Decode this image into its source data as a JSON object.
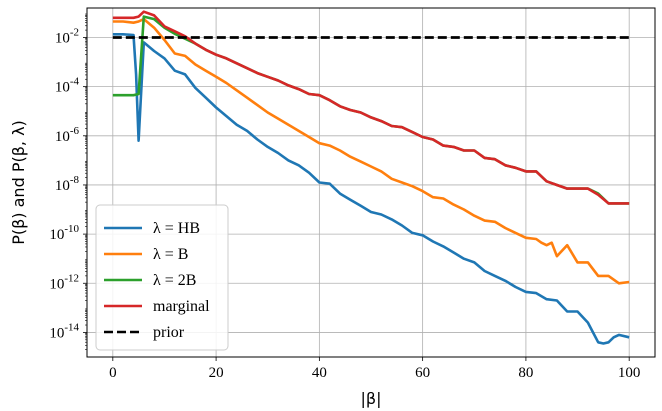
{
  "chart_data": {
    "type": "line",
    "xlabel": "|β|",
    "ylabel": "P(β) and P(β, λ)",
    "xlim": [
      -5,
      105
    ],
    "ylim_log10": [
      -15,
      -0.8
    ],
    "yscale": "log",
    "grid": true,
    "legend_position": "lower-left",
    "x_ticks": [
      0,
      20,
      40,
      60,
      80,
      100
    ],
    "x_tick_labels": [
      "0",
      "20",
      "40",
      "60",
      "80",
      "100"
    ],
    "y_ticks_exp": [
      -14,
      -12,
      -10,
      -8,
      -6,
      -4,
      -2
    ],
    "y_tick_labels": [
      "10^-14",
      "10^-12",
      "10^-10",
      "10^-8",
      "10^-6",
      "10^-4",
      "10^-2"
    ],
    "series": [
      {
        "name": "λ = HB",
        "color": "#1f77b4",
        "style": "solid",
        "x": [
          0,
          2,
          4,
          4.5,
          5,
          6,
          8,
          10,
          12,
          14,
          16,
          18,
          20,
          22,
          24,
          26,
          28,
          30,
          32,
          34,
          36,
          38,
          40,
          42,
          44,
          46,
          48,
          50,
          52,
          54,
          56,
          58,
          60,
          62,
          64,
          66,
          68,
          70,
          72,
          74,
          76,
          78,
          80,
          82,
          84,
          86,
          88,
          90,
          92,
          93,
          94,
          95,
          96,
          97,
          98,
          100
        ],
        "log10_y": [
          -1.87,
          -1.87,
          -1.9,
          -3.5,
          -6.2,
          -2.2,
          -2.55,
          -2.85,
          -3.35,
          -3.5,
          -4.05,
          -4.45,
          -4.85,
          -5.2,
          -5.55,
          -5.8,
          -6.15,
          -6.45,
          -6.7,
          -7.0,
          -7.2,
          -7.5,
          -7.9,
          -7.95,
          -8.35,
          -8.6,
          -8.85,
          -9.1,
          -9.2,
          -9.4,
          -9.65,
          -9.95,
          -10.05,
          -10.3,
          -10.5,
          -10.75,
          -11.0,
          -11.15,
          -11.5,
          -11.7,
          -11.9,
          -12.15,
          -12.35,
          -12.4,
          -12.65,
          -12.7,
          -13.15,
          -13.15,
          -13.6,
          -14.0,
          -14.4,
          -14.45,
          -14.4,
          -14.2,
          -14.1,
          -14.2
        ]
      },
      {
        "name": "λ = B",
        "color": "#ff7f0e",
        "style": "solid",
        "x": [
          0,
          2,
          4,
          5,
          6,
          8,
          10,
          12,
          14,
          16,
          18,
          20,
          22,
          24,
          26,
          28,
          30,
          32,
          34,
          36,
          38,
          40,
          42,
          44,
          46,
          48,
          50,
          52,
          54,
          56,
          58,
          60,
          62,
          64,
          66,
          68,
          70,
          72,
          74,
          76,
          78,
          80,
          82,
          83,
          84,
          85,
          86,
          88,
          90,
          92,
          94,
          96,
          98,
          100
        ],
        "log10_y": [
          -1.35,
          -1.35,
          -1.4,
          -1.35,
          -1.25,
          -1.6,
          -2.1,
          -2.65,
          -2.75,
          -3.1,
          -3.35,
          -3.6,
          -3.85,
          -4.15,
          -4.45,
          -4.75,
          -5.05,
          -5.3,
          -5.55,
          -5.8,
          -6.05,
          -6.3,
          -6.4,
          -6.6,
          -6.85,
          -7.05,
          -7.25,
          -7.45,
          -7.75,
          -7.9,
          -8.05,
          -8.25,
          -8.5,
          -8.55,
          -8.8,
          -9.0,
          -9.25,
          -9.45,
          -9.5,
          -9.75,
          -9.95,
          -10.15,
          -10.2,
          -10.35,
          -10.45,
          -10.35,
          -10.9,
          -10.45,
          -11.15,
          -11.15,
          -11.7,
          -11.7,
          -12.0,
          -11.95
        ]
      },
      {
        "name": "λ = 2B",
        "color": "#2ca02c",
        "style": "solid",
        "x": [
          0,
          2,
          4,
          5,
          6,
          8,
          10,
          12,
          14,
          16,
          18,
          20,
          22,
          24,
          26,
          28,
          30,
          32,
          34,
          36,
          38,
          40,
          42,
          44,
          46,
          48,
          50,
          52,
          54,
          56,
          58,
          60,
          62,
          64,
          66,
          68,
          70,
          72,
          74,
          76,
          78,
          80,
          82,
          84,
          86,
          88,
          90,
          92,
          94,
          96,
          98,
          100
        ],
        "log10_y": [
          -4.35,
          -4.35,
          -4.35,
          -4.3,
          -1.15,
          -1.25,
          -1.6,
          -1.85,
          -2.05,
          -2.25,
          -2.5,
          -2.7,
          -2.85,
          -3.05,
          -3.25,
          -3.45,
          -3.6,
          -3.75,
          -3.95,
          -4.1,
          -4.3,
          -4.35,
          -4.55,
          -4.8,
          -4.95,
          -5.05,
          -5.25,
          -5.4,
          -5.6,
          -5.65,
          -5.85,
          -6.05,
          -6.15,
          -6.4,
          -6.45,
          -6.6,
          -6.6,
          -6.9,
          -6.95,
          -7.2,
          -7.3,
          -7.45,
          -7.45,
          -7.85,
          -8.0,
          -8.15,
          -8.15,
          -8.15,
          -8.35,
          -8.75,
          -8.75,
          -8.75
        ]
      },
      {
        "name": "marginal",
        "color": "#d62728",
        "style": "solid",
        "x": [
          0,
          2,
          4,
          5,
          6,
          8,
          10,
          12,
          14,
          16,
          18,
          20,
          22,
          24,
          26,
          28,
          30,
          32,
          34,
          36,
          38,
          40,
          42,
          44,
          46,
          48,
          50,
          52,
          54,
          56,
          58,
          60,
          62,
          64,
          66,
          68,
          70,
          72,
          74,
          76,
          78,
          80,
          82,
          84,
          86,
          88,
          90,
          92,
          94,
          96,
          98,
          100
        ],
        "log10_y": [
          -1.2,
          -1.2,
          -1.2,
          -1.15,
          -0.95,
          -1.1,
          -1.55,
          -1.75,
          -1.95,
          -2.25,
          -2.5,
          -2.7,
          -2.85,
          -3.05,
          -3.25,
          -3.45,
          -3.6,
          -3.75,
          -3.95,
          -4.1,
          -4.3,
          -4.35,
          -4.55,
          -4.8,
          -4.95,
          -5.05,
          -5.25,
          -5.4,
          -5.6,
          -5.65,
          -5.85,
          -6.05,
          -6.15,
          -6.4,
          -6.45,
          -6.6,
          -6.6,
          -6.9,
          -6.95,
          -7.2,
          -7.3,
          -7.45,
          -7.45,
          -7.85,
          -8.0,
          -8.15,
          -8.15,
          -8.15,
          -8.4,
          -8.75,
          -8.75,
          -8.75
        ]
      },
      {
        "name": "prior",
        "color": "#000000",
        "style": "dashed",
        "x": [
          0,
          100
        ],
        "log10_y": [
          -2.0,
          -2.0
        ]
      }
    ]
  }
}
